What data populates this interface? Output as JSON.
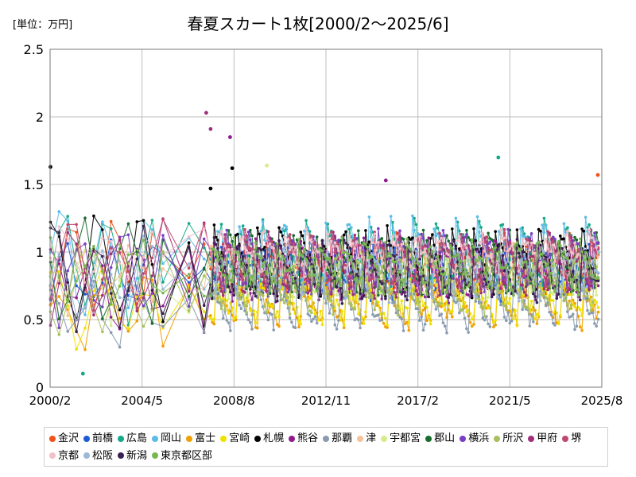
{
  "chart_data": {
    "type": "line",
    "title": "春夏スカート1枚[2000/2～2025/6]",
    "unit_label": "[単位：万円]",
    "ylim": [
      0,
      2.5
    ],
    "y_ticks": [
      "0",
      "0.5",
      "1",
      "1.5",
      "2",
      "2.5"
    ],
    "x_ticks": [
      "2000/2",
      "2004/5",
      "2008/8",
      "2012/11",
      "2017/2",
      "2021/5",
      "2025/8"
    ],
    "grid": true,
    "legend_position": "bottom",
    "series": [
      {
        "name": "金沢",
        "color": "#f0521c",
        "base": 0.85,
        "amp": 0.3,
        "phase": 0.0
      },
      {
        "name": "前橋",
        "color": "#1f5ad6",
        "base": 0.8,
        "amp": 0.25,
        "phase": 0.4
      },
      {
        "name": "広島",
        "color": "#15a88a",
        "base": 0.9,
        "amp": 0.35,
        "phase": 0.8
      },
      {
        "name": "岡山",
        "color": "#5cbce8",
        "base": 0.95,
        "amp": 0.3,
        "phase": 1.2
      },
      {
        "name": "富士",
        "color": "#f0a000",
        "base": 0.55,
        "amp": 0.2,
        "phase": 1.6
      },
      {
        "name": "宮崎",
        "color": "#f0e000",
        "base": 0.6,
        "amp": 0.2,
        "phase": 2.0
      },
      {
        "name": "札幌",
        "color": "#000000",
        "base": 0.85,
        "amp": 0.35,
        "phase": 2.4
      },
      {
        "name": "熊谷",
        "color": "#8e1b8e",
        "base": 0.8,
        "amp": 0.3,
        "phase": 2.8
      },
      {
        "name": "那覇",
        "color": "#8a9bb0",
        "base": 0.55,
        "amp": 0.25,
        "phase": 3.2
      },
      {
        "name": "津",
        "color": "#f5c29a",
        "base": 0.85,
        "amp": 0.2,
        "phase": 3.6
      },
      {
        "name": "宇都宮",
        "color": "#d4ec8a",
        "base": 0.8,
        "amp": 0.25,
        "phase": 4.0
      },
      {
        "name": "郡山",
        "color": "#1a6b2e",
        "base": 0.85,
        "amp": 0.3,
        "phase": 4.4
      },
      {
        "name": "横浜",
        "color": "#7a3fc4",
        "base": 0.85,
        "amp": 0.3,
        "phase": 4.8
      },
      {
        "name": "所沢",
        "color": "#a8c060",
        "base": 0.7,
        "amp": 0.25,
        "phase": 5.2
      },
      {
        "name": "甲府",
        "color": "#a0307a",
        "base": 0.85,
        "amp": 0.3,
        "phase": 5.6
      },
      {
        "name": "堺",
        "color": "#c04870",
        "base": 0.9,
        "amp": 0.25,
        "phase": 6.0
      },
      {
        "name": "京都",
        "color": "#f2c0c8",
        "base": 0.95,
        "amp": 0.2,
        "phase": 0.6
      },
      {
        "name": "松阪",
        "color": "#9bb8d8",
        "base": 0.8,
        "amp": 0.25,
        "phase": 1.4
      },
      {
        "name": "新潟",
        "color": "#3a2050",
        "base": 0.8,
        "amp": 0.3,
        "phase": 2.2
      },
      {
        "name": "東京都区部",
        "color": "#78b850",
        "base": 0.85,
        "amp": 0.25,
        "phase": 3.0
      }
    ],
    "highlights": [
      {
        "series": "甲府",
        "x_year": 2007.3,
        "value": 2.03
      },
      {
        "series": "甲府",
        "x_year": 2007.5,
        "value": 1.91
      },
      {
        "series": "熊谷",
        "x_year": 2008.4,
        "value": 1.85
      },
      {
        "series": "宇都宮",
        "x_year": 2010.1,
        "value": 1.64
      },
      {
        "series": "札幌",
        "x_year": 2008.5,
        "value": 1.62
      },
      {
        "series": "札幌",
        "x_year": 2007.5,
        "value": 1.47
      },
      {
        "series": "広島",
        "x_year": 2020.8,
        "value": 1.7
      },
      {
        "series": "金沢",
        "x_year": 2025.4,
        "value": 1.57
      },
      {
        "series": "熊谷",
        "x_year": 2015.6,
        "value": 1.53
      },
      {
        "series": "広島",
        "x_year": 2001.6,
        "value": 0.1
      },
      {
        "series": "札幌",
        "x_year": 2000.1,
        "value": 1.63
      }
    ]
  }
}
